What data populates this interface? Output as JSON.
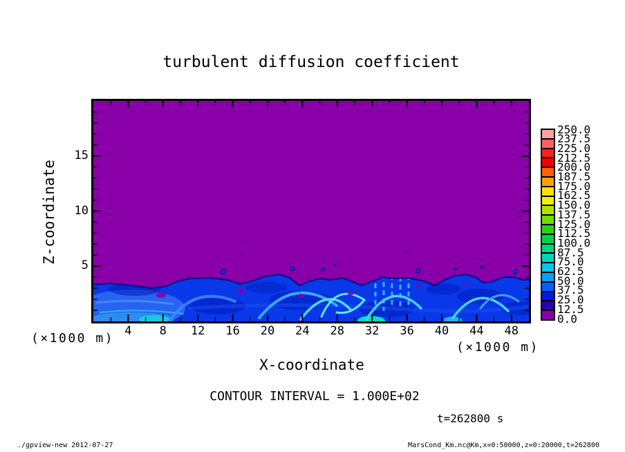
{
  "title": "turbulent diffusion coefficient",
  "axes": {
    "x": {
      "label": "X-coordinate",
      "unit": "(×1000 m)",
      "range": [
        0,
        50
      ],
      "major_ticks": [
        4,
        8,
        12,
        16,
        20,
        24,
        28,
        32,
        36,
        40,
        44,
        48
      ],
      "minor_tick_step": 2
    },
    "y": {
      "label": "Z-coordinate",
      "unit": "(×1000 m)",
      "range": [
        0,
        20
      ],
      "major_ticks": [
        5,
        10,
        15
      ],
      "minor_tick_step": 1
    }
  },
  "colorbar": {
    "labels_top_to_bottom": [
      "250.0",
      "237.5",
      "225.0",
      "212.5",
      "200.0",
      "187.5",
      "175.0",
      "162.5",
      "150.0",
      "137.5",
      "125.0",
      "112.5",
      "100.0",
      "87.5",
      "75.0",
      "62.5",
      "50.0",
      "37.5",
      "25.0",
      "12.5",
      "0.0"
    ],
    "colors_bottom_to_top": [
      "#8A00A8",
      "#2B00AE",
      "#0018E8",
      "#0060FF",
      "#00A0FF",
      "#00C8E8",
      "#00D4C0",
      "#00D484",
      "#00D448",
      "#28D414",
      "#70DC00",
      "#B0E400",
      "#F0F000",
      "#FFE000",
      "#FFA000",
      "#FF6000",
      "#F00000",
      "#FF2020",
      "#FF6060",
      "#FFA0A0"
    ]
  },
  "contour_note": "CONTOUR INTERVAL = 1.000E+02",
  "time_note": "t=262800 s",
  "footer": {
    "left": "./gpview-new  2012-07-27",
    "right": "MarsCond_Km.nc@Km,x=0:50000,z=0:20000,t=262800"
  },
  "chart_data": {
    "type": "heatmap",
    "title": "turbulent diffusion coefficient",
    "xlabel": "X-coordinate (×1000 m)",
    "ylabel": "Z-coordinate (×1000 m)",
    "xlim": [
      0,
      50
    ],
    "ylim": [
      0,
      20
    ],
    "value_range": [
      0.0,
      250.0
    ],
    "value_level_step": 12.5,
    "contour_interval": "1.000E+02",
    "time": "t=262800 s",
    "colors": {
      "background_field": "#8A00A8",
      "turbulent_layer": "#0838E8",
      "eddy_highlight": "#52D8F0",
      "interface_line": "#140A8C"
    },
    "field_summary": "Quiescent region with Km in lowest bin (0.0–12.5, purple) everywhere above z ≈ 4 (×1000 m); turbulent convective boundary layer below z ≈ 4 with Km mostly 25–75 (blue) and eddy filaments reaching ≈ 87.5–112.5 (cyan–teal); no values in the yellow–red range appear in the plotted field.",
    "boundary_layer_top_vs_x": {
      "x": [
        0,
        5,
        10,
        15,
        20,
        25,
        30,
        35,
        40,
        45,
        50
      ],
      "z_top": [
        3.3,
        3.3,
        3.7,
        3.8,
        4.1,
        3.6,
        3.5,
        3.9,
        3.5,
        3.6,
        3.8
      ]
    }
  }
}
